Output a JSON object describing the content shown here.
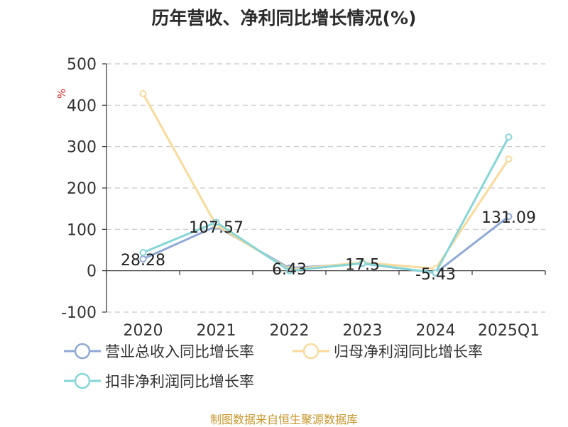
{
  "title": "历年营收、净利同比增长情况(%)",
  "source_note": "制图数据来自恒生聚源数据库",
  "chart_data": {
    "type": "line",
    "title": "历年营收、净利同比增长情况(%)",
    "ylabel": "%",
    "ylim": [
      -100,
      500
    ],
    "yticks": [
      500,
      400,
      300,
      200,
      100,
      0,
      -100
    ],
    "grid": true,
    "legend_position": "bottom-left",
    "categories": [
      "2020",
      "2021",
      "2022",
      "2023",
      "2024",
      "2025Q1"
    ],
    "series": [
      {
        "name": "营业总收入同比增长率",
        "color": "#8fa9d6",
        "values": [
          28.28,
          107.57,
          6.43,
          17.5,
          -5.43,
          131.09
        ],
        "labels": [
          "28.28",
          "107.57",
          "6.43",
          "17.5",
          "-5.43",
          "131.09"
        ]
      },
      {
        "name": "归母净利润同比增长率",
        "color": "#f9da9b",
        "values": [
          428,
          110,
          3,
          20,
          5,
          270
        ]
      },
      {
        "name": "扣非净利润同比增长率",
        "color": "#86d6d8",
        "values": [
          44,
          117,
          0,
          18,
          -5,
          323
        ]
      }
    ]
  }
}
